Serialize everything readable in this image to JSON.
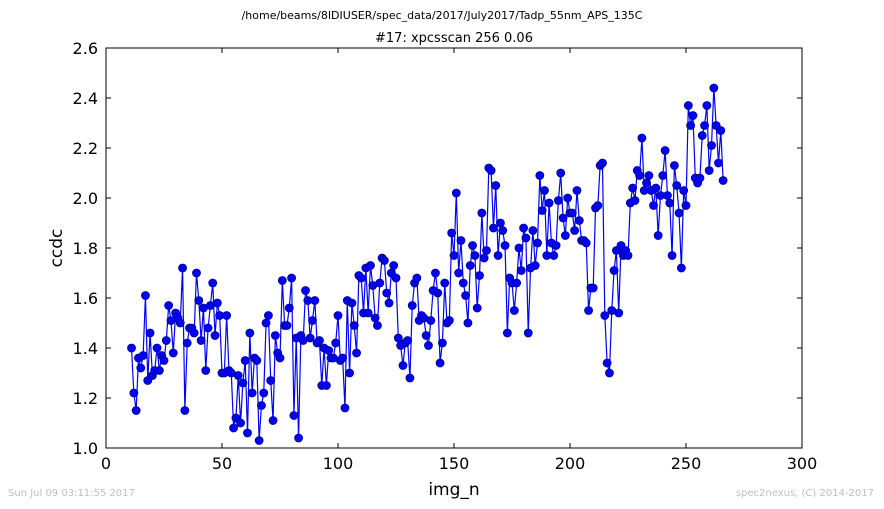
{
  "header": {
    "file_path": "/home/beams/8IDIUSER/spec_data/2017/July2017/Tadp_55nm_APS_135C"
  },
  "footer": {
    "timestamp": "Sun Jul 09 03:11:55 2017",
    "credit": "spec2nexus, (C) 2014-2017"
  },
  "colors": {
    "series": "#0000ff",
    "marker_edge": "#000080",
    "footer_text": "#bfbfbf"
  },
  "chart_data": {
    "type": "line",
    "title": "#17: xpcsscan 256 0.06",
    "xlabel": "img_n",
    "ylabel": "ccdc",
    "xlim": [
      0,
      300
    ],
    "ylim": [
      1.0,
      2.6
    ],
    "xticks": [
      "0",
      "50",
      "100",
      "150",
      "200",
      "250",
      "300"
    ],
    "yticks": [
      "1.0",
      "1.2",
      "1.4",
      "1.6",
      "1.8",
      "2.0",
      "2.2",
      "2.4",
      "2.6"
    ],
    "grid": false,
    "marker": "circle",
    "x_start": 11,
    "values": [
      1.4,
      1.22,
      1.15,
      1.36,
      1.32,
      1.37,
      1.61,
      1.27,
      1.46,
      1.29,
      1.31,
      1.4,
      1.31,
      1.37,
      1.35,
      1.43,
      1.57,
      1.51,
      1.38,
      1.54,
      1.52,
      1.5,
      1.72,
      1.15,
      1.42,
      1.48,
      1.48,
      1.46,
      1.7,
      1.59,
      1.43,
      1.56,
      1.31,
      1.48,
      1.57,
      1.66,
      1.45,
      1.58,
      1.53,
      1.3,
      1.3,
      1.53,
      1.31,
      1.3,
      1.08,
      1.12,
      1.29,
      1.1,
      1.26,
      1.35,
      1.06,
      1.46,
      1.22,
      1.36,
      1.35,
      1.03,
      1.17,
      1.22,
      1.5,
      1.53,
      1.27,
      1.11,
      1.45,
      1.38,
      1.36,
      1.67,
      1.49,
      1.49,
      1.56,
      1.68,
      1.13,
      1.44,
      1.04,
      1.45,
      1.43,
      1.63,
      1.59,
      1.44,
      1.51,
      1.59,
      1.42,
      1.43,
      1.25,
      1.4,
      1.25,
      1.39,
      1.36,
      1.36,
      1.42,
      1.53,
      1.35,
      1.36,
      1.16,
      1.59,
      1.3,
      1.58,
      1.49,
      1.38,
      1.69,
      1.68,
      1.54,
      1.72,
      1.54,
      1.73,
      1.65,
      1.52,
      1.49,
      1.66,
      1.76,
      1.75,
      1.62,
      1.58,
      1.7,
      1.73,
      1.68,
      1.44,
      1.41,
      1.33,
      1.42,
      1.43,
      1.28,
      1.57,
      1.66,
      1.68,
      1.51,
      1.53,
      1.52,
      1.45,
      1.41,
      1.51,
      1.63,
      1.7,
      1.62,
      1.34,
      1.42,
      1.66,
      1.5,
      1.51,
      1.86,
      1.77,
      2.02,
      1.7,
      1.83,
      1.66,
      1.61,
      1.5,
      1.73,
      1.81,
      1.77,
      1.56,
      1.69,
      1.94,
      1.76,
      1.79,
      2.12,
      2.11,
      1.88,
      2.05,
      1.77,
      1.9,
      1.87,
      1.81,
      1.46,
      1.68,
      1.66,
      1.55,
      1.66,
      1.8,
      1.71,
      1.88,
      1.84,
      1.46,
      1.72,
      1.87,
      1.73,
      1.82,
      2.09,
      1.95,
      2.03,
      1.77,
      1.98,
      1.82,
      1.77,
      1.81,
      1.99,
      2.1,
      1.92,
      1.85,
      2.0,
      1.94,
      1.94,
      1.87,
      2.03,
      1.91,
      1.83,
      1.83,
      1.82,
      1.55,
      1.64,
      1.64,
      1.96,
      1.97,
      2.13,
      2.14,
      1.53,
      1.34,
      1.3,
      1.55,
      1.71,
      1.79,
      1.54,
      1.81,
      1.77,
      1.79,
      1.77,
      1.98,
      2.04,
      1.99,
      2.11,
      2.09,
      2.24,
      2.03,
      2.06,
      2.09,
      2.03,
      1.97,
      2.04,
      1.85,
      2.01,
      2.09,
      2.19,
      2.01,
      1.98,
      1.77,
      2.13,
      2.05,
      1.94,
      1.72,
      2.03,
      1.97,
      2.37,
      2.29,
      2.33,
      2.08,
      2.06,
      2.08,
      2.25,
      2.29,
      2.37,
      2.11,
      2.21,
      2.44,
      2.29,
      2.14,
      2.27,
      2.07
    ]
  }
}
